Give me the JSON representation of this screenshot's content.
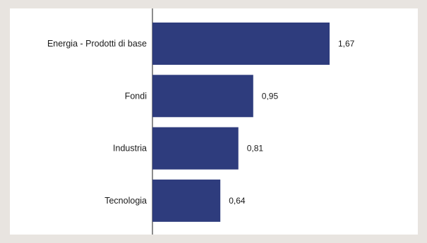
{
  "colors": {
    "bar": "#2e3c7d",
    "background": "#e8e4e0",
    "panel": "#ffffff",
    "axis": "#1a1a1a"
  },
  "chart_data": {
    "type": "bar",
    "orientation": "horizontal",
    "categories": [
      "Energia - Prodotti di base",
      "Fondi",
      "Industria",
      "Tecnologia"
    ],
    "values": [
      1.67,
      0.95,
      0.81,
      0.64
    ],
    "value_labels": [
      "1,67",
      "0,95",
      "0,81",
      "0,64"
    ],
    "xlim": [
      0,
      2.0
    ],
    "grid": false,
    "legend": "none"
  }
}
